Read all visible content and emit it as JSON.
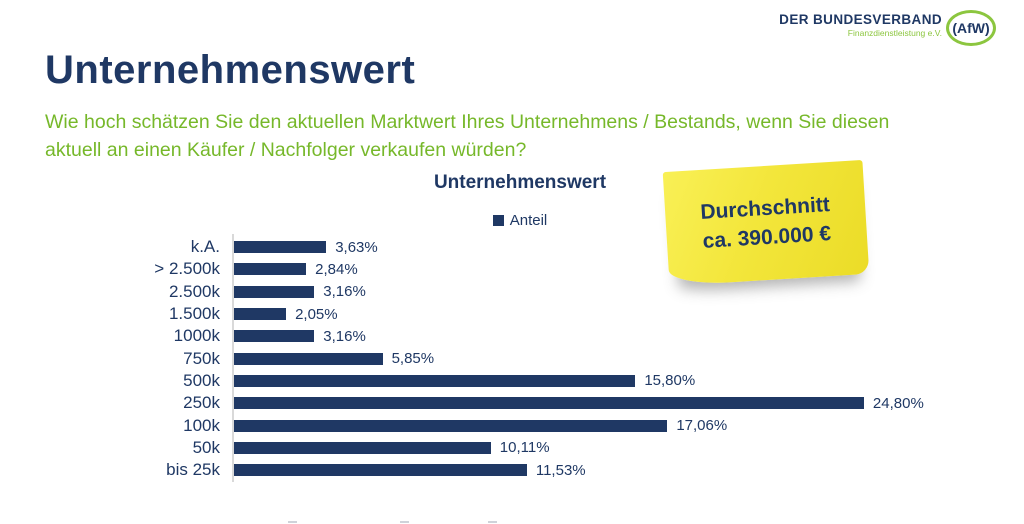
{
  "logo": {
    "org": "DER BUNDESVERBAND",
    "suborg": "Finanzdienstleistung e.V.",
    "badge": "(AfW)"
  },
  "page_title": "Unternehmenswert",
  "question": {
    "line1": "Wie hoch schätzen Sie den aktuellen Marktwert Ihres Unternehmens / Bestands, wenn Sie diesen",
    "line2": "aktuell an einen Käufer / Nachfolger verkaufen würden?"
  },
  "sticky_note": {
    "line1": "Durchschnitt",
    "line2": "ca. 390.000 €"
  },
  "colors": {
    "navy": "#1F3864",
    "question_green": "#76B82A",
    "logo_green": "#8CC63F",
    "bar_navy": "#1F3864",
    "sticky_yellow": "#F3E63B",
    "axis_gray": "#D9D9D9"
  },
  "chart_data": {
    "type": "bar",
    "orientation": "horizontal",
    "title": "Unternehmenswert",
    "legend": [
      "Anteil"
    ],
    "legend_position": "top-center",
    "grid": false,
    "xlim": [
      0,
      26
    ],
    "categories": [
      "k.A.",
      "> 2.500k",
      "2.500k",
      "1.500k",
      "1000k",
      "750k",
      "500k",
      "250k",
      "100k",
      "50k",
      "bis 25k"
    ],
    "values": [
      3.63,
      2.84,
      3.16,
      2.05,
      3.16,
      5.85,
      15.8,
      24.8,
      17.06,
      10.11,
      11.53
    ],
    "value_labels": [
      "3,63%",
      "2,84%",
      "3,16%",
      "2,05%",
      "3,16%",
      "5,85%",
      "15,80%",
      "24,80%",
      "17,06%",
      "10,11%",
      "11,53%"
    ],
    "xlabel": "",
    "ylabel": ""
  }
}
